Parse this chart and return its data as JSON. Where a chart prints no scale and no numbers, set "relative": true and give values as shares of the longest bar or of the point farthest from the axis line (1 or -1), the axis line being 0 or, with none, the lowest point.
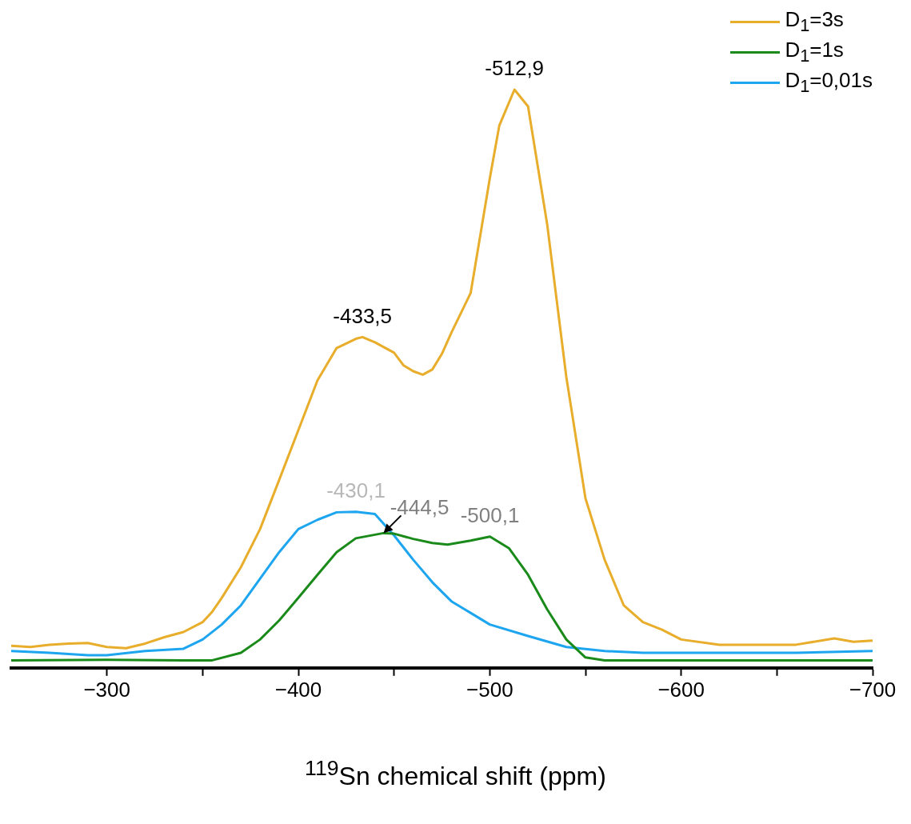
{
  "chart_data": {
    "type": "line",
    "relative": true,
    "xlabel": "$^{119}$Sn chemical shift (ppm)",
    "xlim": [
      -250,
      -700
    ],
    "xticks": [
      {
        "value": -300,
        "label": "−300"
      },
      {
        "value": -350,
        "label": null
      },
      {
        "value": -400,
        "label": "−400"
      },
      {
        "value": -450,
        "label": null
      },
      {
        "value": -500,
        "label": "−500"
      },
      {
        "value": -550,
        "label": null
      },
      {
        "value": -600,
        "label": "−600"
      },
      {
        "value": -650,
        "label": null
      },
      {
        "value": -700,
        "label": "−700"
      }
    ],
    "legend": "top right",
    "grid": false,
    "marker": "none",
    "line_style": "solid",
    "series": [
      {
        "name": "D$_{1}$=3s",
        "color": "#e8ad2b",
        "x": [
          -250,
          -260,
          -270,
          -280,
          -290,
          -300,
          -310,
          -320,
          -330,
          -340,
          -350,
          -355,
          -360,
          -370,
          -380,
          -390,
          -400,
          -410,
          -420,
          -430,
          -433.5,
          -440,
          -450,
          -455,
          -460,
          -465,
          -470,
          -475,
          -480,
          -490,
          -500,
          -505,
          -512.9,
          -520,
          -530,
          -540,
          -550,
          -560,
          -570,
          -580,
          -590,
          -600,
          -620,
          -640,
          -660,
          -680,
          -690,
          -700
        ],
        "values": [
          0.038,
          0.036,
          0.04,
          0.042,
          0.043,
          0.036,
          0.034,
          0.042,
          0.053,
          0.062,
          0.079,
          0.097,
          0.121,
          0.174,
          0.24,
          0.325,
          0.411,
          0.497,
          0.553,
          0.569,
          0.572,
          0.563,
          0.545,
          0.523,
          0.513,
          0.507,
          0.516,
          0.543,
          0.58,
          0.648,
          0.846,
          0.938,
          1,
          0.971,
          0.767,
          0.503,
          0.293,
          0.187,
          0.108,
          0.079,
          0.066,
          0.049,
          0.04,
          0.04,
          0.04,
          0.051,
          0.045,
          0.047
        ]
      },
      {
        "name": "D$_{1}$=1s",
        "color": "#1a8a1a",
        "x": [
          -250,
          -300,
          -340,
          -355,
          -370,
          -380,
          -390,
          -400,
          -410,
          -420,
          -430,
          -444.5,
          -450,
          -460,
          -470,
          -478,
          -490,
          -500.1,
          -510,
          -520,
          -530,
          -540,
          -550,
          -560,
          -600,
          -650,
          -700
        ],
        "values": [
          0.013,
          0.014,
          0.013,
          0.013,
          0.026,
          0.049,
          0.082,
          0.121,
          0.161,
          0.2,
          0.224,
          0.233,
          0.232,
          0.223,
          0.216,
          0.213,
          0.22,
          0.227,
          0.207,
          0.161,
          0.101,
          0.049,
          0.018,
          0.013,
          0.013,
          0.013,
          0.013
        ]
      },
      {
        "name": "D$_{1}$=0,01s",
        "color": "#1ea5f0",
        "x": [
          -250,
          -270,
          -290,
          -300,
          -320,
          -340,
          -350,
          -360,
          -370,
          -380,
          -390,
          -400,
          -410,
          -420,
          -430.1,
          -440,
          -450,
          -460,
          -470,
          -480,
          -490,
          -500,
          -520,
          -540,
          -560,
          -580,
          -600,
          -620,
          -640,
          -660,
          -700
        ],
        "values": [
          0.029,
          0.026,
          0.022,
          0.022,
          0.029,
          0.033,
          0.049,
          0.075,
          0.108,
          0.154,
          0.2,
          0.24,
          0.256,
          0.269,
          0.27,
          0.266,
          0.229,
          0.187,
          0.148,
          0.115,
          0.095,
          0.075,
          0.055,
          0.036,
          0.029,
          0.026,
          0.026,
          0.026,
          0.026,
          0.026,
          0.029
        ]
      }
    ],
    "annotations": [
      {
        "text": "-512,9",
        "x": -512.9,
        "y": 1
      },
      {
        "text": "-433,5",
        "x": -433.5,
        "y": 0.572
      },
      {
        "text": "-430,1",
        "x": -430.1,
        "y": 0.27
      },
      {
        "text": "-444,5",
        "x": -444.5,
        "y": 0.233
      },
      {
        "text": "-500,1",
        "x": -500.1,
        "y": 0.227
      }
    ]
  }
}
